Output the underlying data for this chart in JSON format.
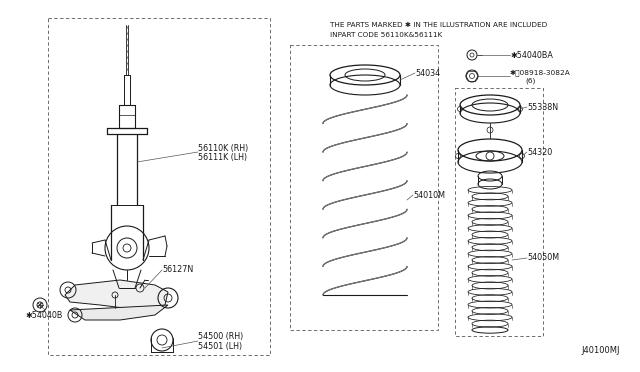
{
  "bg_color": "#ffffff",
  "line_color": "#1a1a1a",
  "text_color": "#1a1a1a",
  "note_line1": "THE PARTS MARKED ✱ IN THE ILLUSTRATION ARE INCLUDED",
  "note_line2": "INPART CODE 56110K&56111K",
  "diagram_id": "J40100MJ",
  "font_size_label": 5.8,
  "font_size_note": 5.2,
  "font_size_id": 6.0
}
